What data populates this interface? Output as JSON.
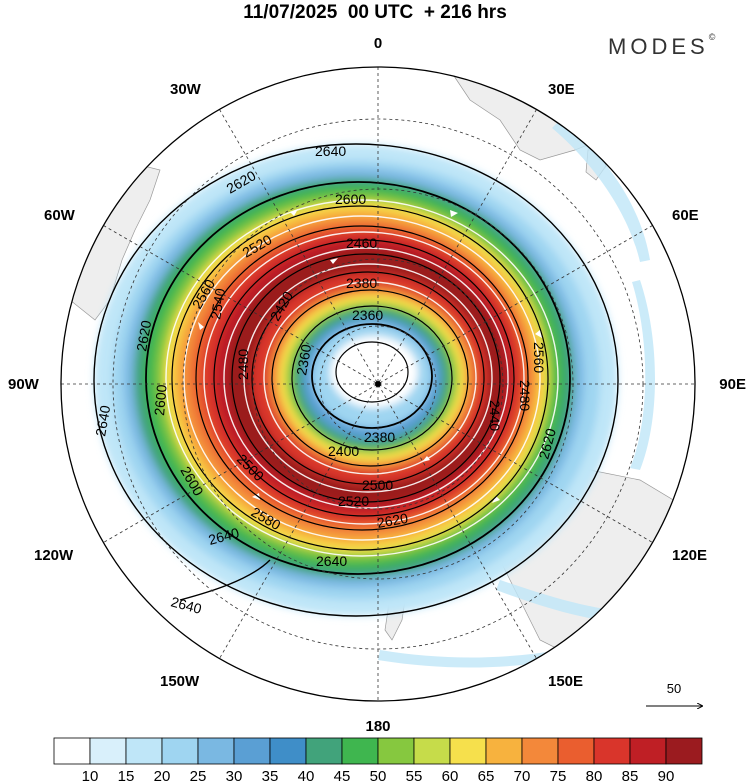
{
  "title": "11/07/2025  00 UTC  + 216 hrs",
  "brand": {
    "name": "MODES",
    "mark": "©"
  },
  "projection": "south polar stereographic",
  "longitude_labels": {
    "top": "0",
    "bottom": "180",
    "left": "90W",
    "right": "90E",
    "nw1": "30W",
    "nw2": "60W",
    "sw1": "120W",
    "sw2": "150W",
    "ne1": "30E",
    "ne2": "60E",
    "se1": "120E",
    "se2": "150E"
  },
  "contours": [
    {
      "level": 2640,
      "labels": [
        "2640",
        "2640",
        "2640",
        "2640",
        "2640"
      ]
    },
    {
      "level": 2620,
      "labels": [
        "2620",
        "2620",
        "2620",
        "2620"
      ]
    },
    {
      "level": 2600,
      "labels": [
        "2600",
        "2600",
        "2600"
      ]
    },
    {
      "level": 2580,
      "labels": [
        "2580"
      ]
    },
    {
      "level": 2560,
      "labels": [
        "2560",
        "2560"
      ]
    },
    {
      "level": 2540,
      "labels": [
        "2540"
      ]
    },
    {
      "level": 2520,
      "labels": [
        "2520",
        "2520"
      ]
    },
    {
      "level": 2500,
      "labels": [
        "2500",
        "2500"
      ]
    },
    {
      "level": 2480,
      "labels": [
        "2480",
        "2480"
      ]
    },
    {
      "level": 2460,
      "labels": [
        "2460"
      ]
    },
    {
      "level": 2440,
      "labels": [
        "2440"
      ]
    },
    {
      "level": 2420,
      "labels": [
        "2420"
      ]
    },
    {
      "level": 2400,
      "labels": [
        "2400"
      ]
    },
    {
      "level": 2380,
      "labels": [
        "2380",
        "2380"
      ]
    },
    {
      "level": 2360,
      "labels": [
        "2360",
        "2360"
      ]
    }
  ],
  "vector_reference": {
    "label": "50"
  },
  "colorbar": {
    "ticks": [
      "10",
      "15",
      "20",
      "25",
      "30",
      "35",
      "40",
      "45",
      "50",
      "55",
      "60",
      "65",
      "70",
      "75",
      "80",
      "85",
      "90"
    ],
    "colors": [
      "#ffffff",
      "#d9f0fb",
      "#bfe6f8",
      "#9fd5f1",
      "#7ab8e2",
      "#5a9fd4",
      "#3f8ec8",
      "#41a37b",
      "#3fb64f",
      "#86c83f",
      "#c6dc4a",
      "#f6e04c",
      "#f7b23e",
      "#f3883a",
      "#ea5e2f",
      "#d9352b",
      "#bf1f25",
      "#9b1b1f"
    ]
  }
}
